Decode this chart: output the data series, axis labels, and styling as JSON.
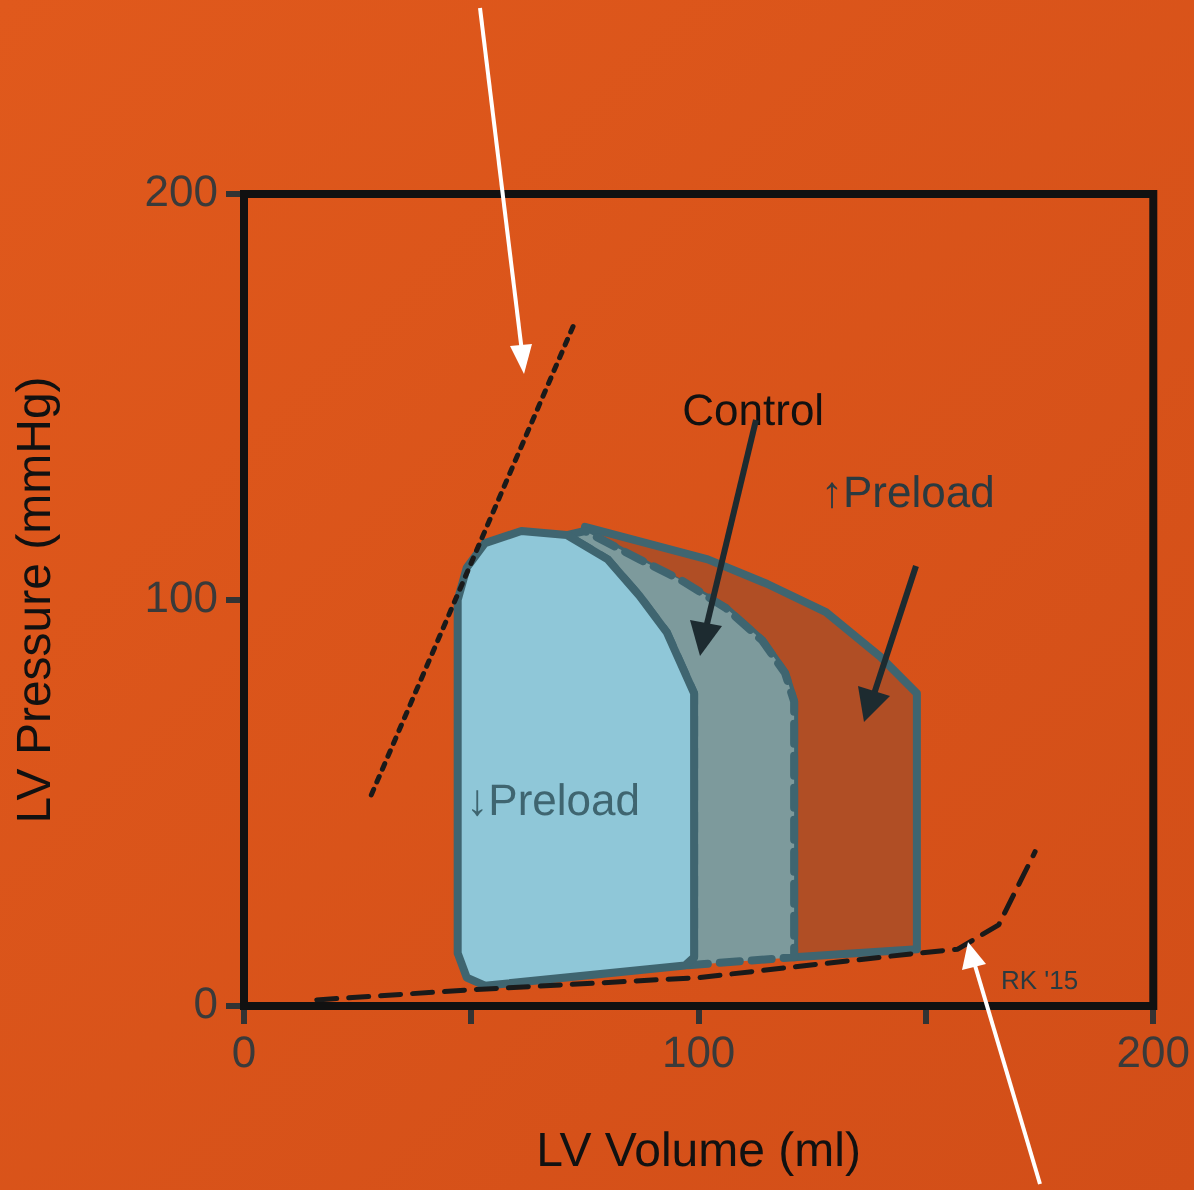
{
  "chart_data": {
    "type": "area",
    "xlabel": "LV Volume (ml)",
    "ylabel": "LV Pressure (mmHg)",
    "xlim": [
      0,
      200
    ],
    "xticks": [
      0,
      {
        "value": 50,
        "label": null
      },
      100,
      {
        "value": 150,
        "label": null
      },
      200
    ],
    "ylim": [
      0,
      200
    ],
    "yticks": [
      0,
      100,
      200
    ],
    "grid": false,
    "legend": false,
    "series": [
      {
        "type": "area",
        "color": "#b04e25",
        "x": [
          75,
          102,
          115,
          128,
          140,
          148,
          148,
          121,
          121,
          119,
          114,
          106,
          75,
          75
        ],
        "values": [
          118,
          110,
          104,
          97,
          86,
          77,
          14,
          12,
          75,
          82,
          90,
          98,
          117,
          118
        ]
      },
      {
        "type": "area",
        "color": "#7d9a9c",
        "line_style": "dashed",
        "x": [
          71,
          75,
          87,
          96,
          106,
          114,
          119,
          121,
          121,
          97,
          99,
          99,
          93,
          87,
          80,
          71
        ],
        "values": [
          116,
          117,
          110,
          105,
          98,
          90,
          82,
          75,
          12,
          10,
          12,
          77,
          92,
          101,
          110,
          116
        ]
      },
      {
        "type": "area",
        "color": "#8fc7d8",
        "x": [
          53,
          97,
          99,
          99,
          93,
          87,
          80,
          71,
          61,
          53,
          49,
          47,
          47,
          49,
          53
        ],
        "values": [
          5,
          10,
          12,
          77,
          92,
          101,
          110,
          116,
          117,
          114,
          108,
          100,
          13,
          7,
          5
        ]
      },
      {
        "type": "line",
        "color": "#1a1a1a",
        "line_style": "dotted",
        "x": [
          28,
          73
        ],
        "values": [
          52,
          169
        ]
      },
      {
        "type": "line",
        "color": "#1a1a1a",
        "line_style": "dashed",
        "x": [
          16,
          50,
          100,
          148,
          157,
          166,
          174
        ],
        "values": [
          1.5,
          4,
          7,
          13,
          14,
          20,
          38
        ]
      }
    ],
    "annotations": [
      "Control",
      "↑Preload",
      "↓Preload",
      "RK '15"
    ]
  }
}
